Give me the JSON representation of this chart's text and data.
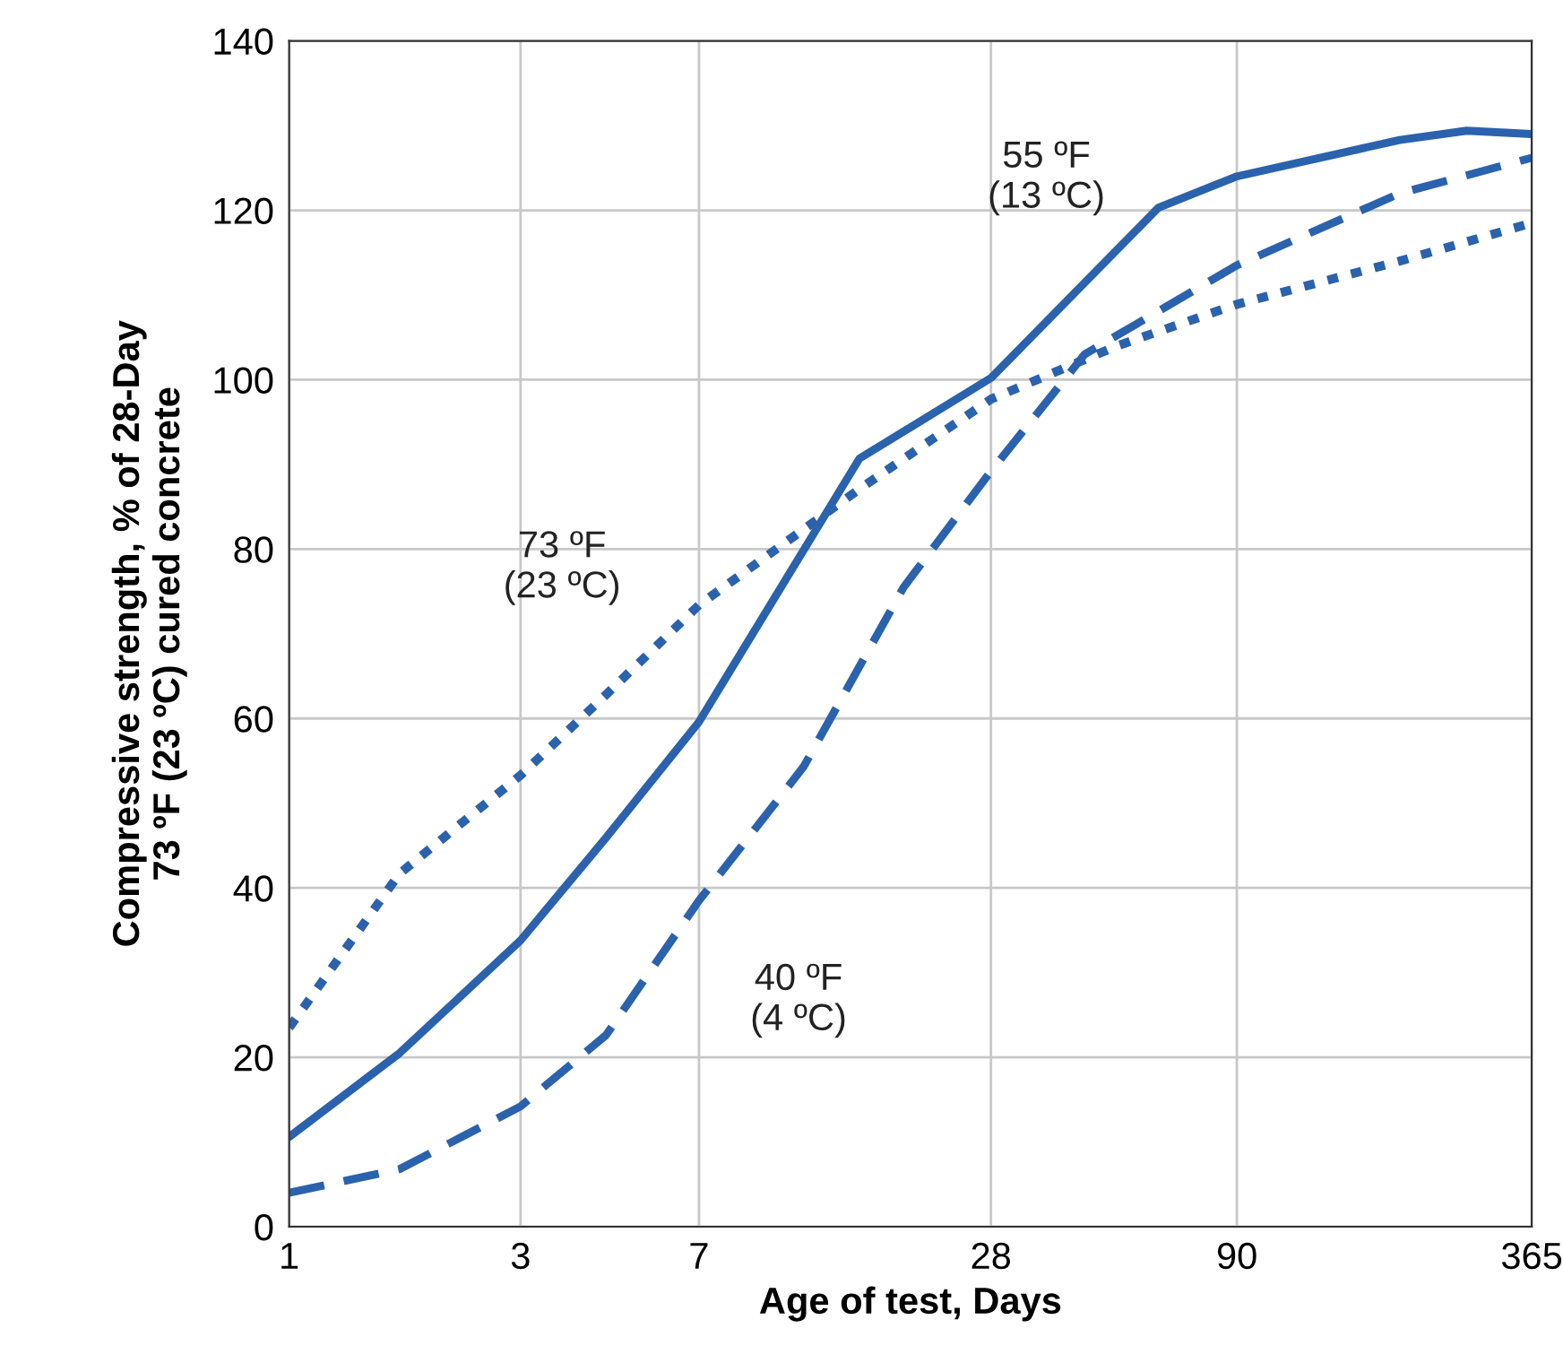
{
  "chart_data": {
    "type": "line",
    "xlabel": "Age of test, Days",
    "ylabel": "Compressive strength, % of 28-Day\n73 ºF (23 ºC) cured concrete",
    "log": "x",
    "xlim": [
      1,
      365
    ],
    "xticks": [
      1,
      3,
      7,
      28,
      90,
      365
    ],
    "ylim": [
      0,
      140
    ],
    "yticks": [
      0,
      20,
      40,
      60,
      80,
      100,
      120,
      140
    ],
    "grid": true,
    "legend": false,
    "series": [
      {
        "name": "55 ºF\n(13 ºC)",
        "color": "#2b62ad",
        "line_style": "solid",
        "x": [
          1,
          1.69,
          3,
          4.5,
          7,
          15,
          28,
          62,
          90,
          195,
          268,
          365
        ],
        "values": [
          10.6,
          20.5,
          33.8,
          45.9,
          59.6,
          90.7,
          100.2,
          120.3,
          124,
          128.3,
          129.4,
          129
        ]
      },
      {
        "name": "73 ºF\n(23 ºC)",
        "color": "#2b62ad",
        "line_style": "dotted",
        "x": [
          1,
          1.69,
          3,
          4.5,
          7,
          15,
          28,
          51,
          90,
          195,
          365
        ],
        "values": [
          23.5,
          41.7,
          53.3,
          62.8,
          73.4,
          87.1,
          97.7,
          104,
          108.9,
          114,
          118.5
        ]
      },
      {
        "name": "40 ºF\n(4 ºC)",
        "color": "#2b62ad",
        "line_style": "dashed",
        "x": [
          1,
          1.69,
          3,
          4.5,
          7,
          11.5,
          18.5,
          28,
          43.7,
          90,
          195,
          365
        ],
        "values": [
          4,
          6.8,
          14.2,
          22.6,
          38.5,
          54.3,
          75.5,
          89.2,
          103,
          113.5,
          122,
          126.2
        ]
      }
    ]
  }
}
